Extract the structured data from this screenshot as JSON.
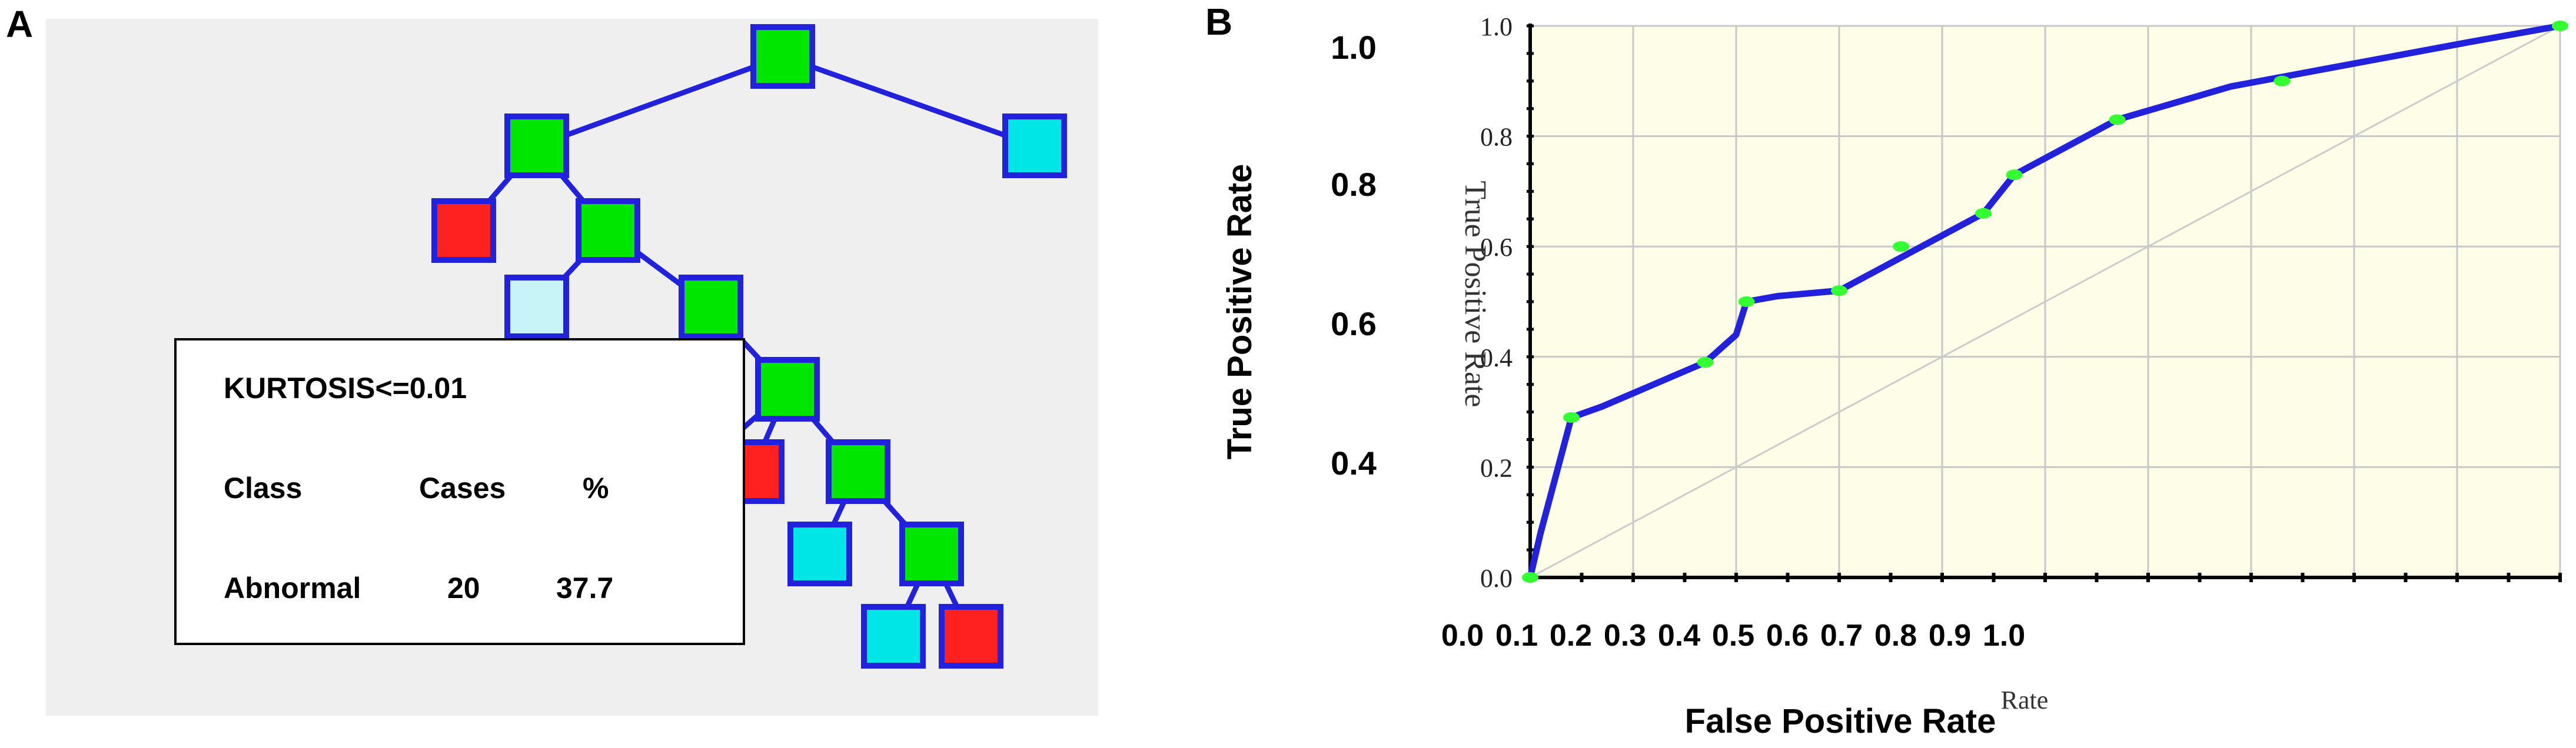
{
  "panels": {
    "a_label": "A",
    "b_label": "B"
  },
  "colors": {
    "background": "#efefef",
    "node_border": "#2222dd",
    "edge": "#2222dd",
    "class_abnormal": "#ff2020",
    "class_normal": "#00e5e5",
    "class_mixed": "#00e600",
    "class_light": "#c8f4f8"
  },
  "tree": {
    "nodes": [
      {
        "id": "n0",
        "class": "mixed"
      },
      {
        "id": "n1",
        "class": "mixed"
      },
      {
        "id": "n2",
        "class": "normal"
      },
      {
        "id": "n3",
        "class": "abnormal"
      },
      {
        "id": "n4",
        "class": "mixed"
      },
      {
        "id": "n5",
        "class": "light"
      },
      {
        "id": "n6",
        "class": "mixed"
      },
      {
        "id": "n7",
        "class": "mixed"
      },
      {
        "id": "n8",
        "class": "normal"
      },
      {
        "id": "n9",
        "class": "abnormal"
      },
      {
        "id": "n10",
        "class": "mixed"
      },
      {
        "id": "n11",
        "class": "normal"
      },
      {
        "id": "n12",
        "class": "mixed"
      },
      {
        "id": "n13",
        "class": "normal"
      },
      {
        "id": "n14",
        "class": "abnormal"
      }
    ],
    "edges": [
      [
        "n0",
        "n1"
      ],
      [
        "n0",
        "n2"
      ],
      [
        "n1",
        "n3"
      ],
      [
        "n1",
        "n4"
      ],
      [
        "n4",
        "n5"
      ],
      [
        "n4",
        "n6"
      ],
      [
        "n6",
        "n7"
      ],
      [
        "n7",
        "n8"
      ],
      [
        "n7",
        "n9"
      ],
      [
        "n7",
        "n10"
      ],
      [
        "n10",
        "n11"
      ],
      [
        "n10",
        "n12"
      ],
      [
        "n12",
        "n13"
      ],
      [
        "n12",
        "n14"
      ]
    ]
  },
  "info_box": {
    "rule": "KURTOSIS<=0.01",
    "header": {
      "class": "Class",
      "cases": "Cases",
      "percent": "%"
    },
    "row": {
      "class": "Abnormal",
      "cases": "20",
      "percent": "37.7"
    }
  },
  "chart_data": {
    "type": "line",
    "xlabel": "False Positive Rate",
    "ylabel": "True Positive Rate",
    "x_tick_labels": [
      "0.0",
      "0.1",
      "0.2",
      "0.3",
      "0.4",
      "0.5",
      "0.6",
      "0.7",
      "0.8",
      "0.9",
      "1.0"
    ],
    "y_tick_labels": [
      "0.4",
      "0.6",
      "0.8",
      "1.0"
    ],
    "inner_y_tick_labels": [
      "0.0",
      "0.2",
      "0.4",
      "0.6",
      "0.8",
      "1.0"
    ],
    "inner_ylabel": "True Positive Rate",
    "inner_xlabel": "Rate",
    "xlim": [
      0,
      1
    ],
    "ylim": [
      0,
      1
    ],
    "grid": true,
    "series": [
      {
        "x": [
          0.0,
          0.01,
          0.04,
          0.07,
          0.17,
          0.2,
          0.21,
          0.24,
          0.3,
          0.44,
          0.47,
          0.57,
          0.68,
          0.91,
          1.0
        ],
        "y": [
          0.0,
          0.08,
          0.29,
          0.31,
          0.39,
          0.44,
          0.5,
          0.51,
          0.52,
          0.66,
          0.73,
          0.83,
          0.89,
          0.97,
          1.0
        ]
      }
    ],
    "markers_x": [
      0.0,
      0.04,
      0.17,
      0.21,
      0.3,
      0.36,
      0.44,
      0.47,
      0.57,
      0.73,
      1.0
    ],
    "markers_y": [
      0.0,
      0.29,
      0.39,
      0.5,
      0.52,
      0.6,
      0.66,
      0.73,
      0.83,
      0.9,
      1.0
    ],
    "colors": {
      "line": "#2222dd",
      "marker": "#33ff33",
      "plot_bg": "#fdfde8",
      "grid": "#c8c8c8",
      "diagonal": "#cccccc"
    }
  }
}
